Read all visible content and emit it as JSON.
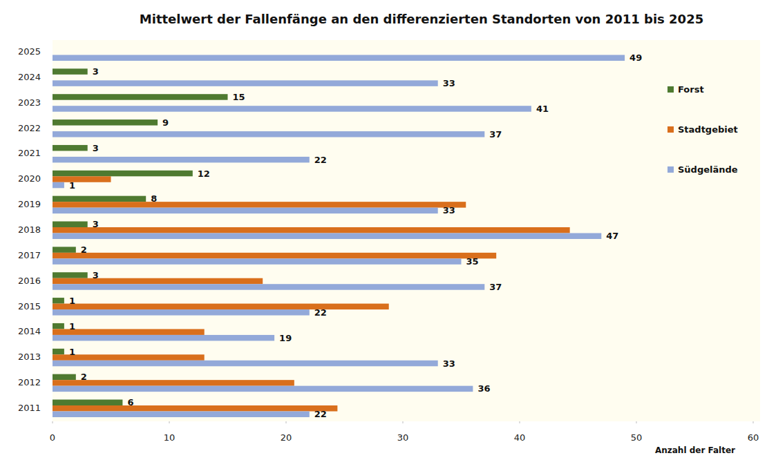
{
  "chart_data": {
    "type": "bar",
    "orientation": "horizontal",
    "title": "Mittelwert der Fallenfänge an den differenzierten Standorten von 2011 bis 2025",
    "x_label": "Anzahl der Falter",
    "categories": [
      "2011",
      "2012",
      "2013",
      "2014",
      "2015",
      "2016",
      "2017",
      "2018",
      "2019",
      "2020",
      "2021",
      "2022",
      "2023",
      "2024",
      "2025"
    ],
    "series": [
      {
        "name": "Forst",
        "color": "#4f7a30",
        "data_labels": true,
        "values": [
          6,
          2,
          1,
          1,
          1,
          3,
          2,
          3,
          8,
          12,
          3,
          9,
          15,
          3,
          null
        ]
      },
      {
        "name": "Stadtgebiet",
        "color": "#d96f1c",
        "data_labels": false,
        "values": [
          24.4,
          20.7,
          13,
          13,
          28.8,
          18,
          38,
          44.3,
          35.4,
          5,
          null,
          null,
          null,
          null,
          null
        ]
      },
      {
        "name": "Südgelände",
        "color": "#93a9d9",
        "data_labels": true,
        "values": [
          22,
          36,
          33,
          19,
          22,
          37,
          35,
          47,
          33,
          1,
          22,
          37,
          41,
          33,
          49
        ]
      }
    ],
    "xlim": [
      0,
      60
    ],
    "xticks": [
      0,
      10,
      20,
      30,
      40,
      50,
      60
    ],
    "grid": false,
    "legend": "upper right"
  }
}
